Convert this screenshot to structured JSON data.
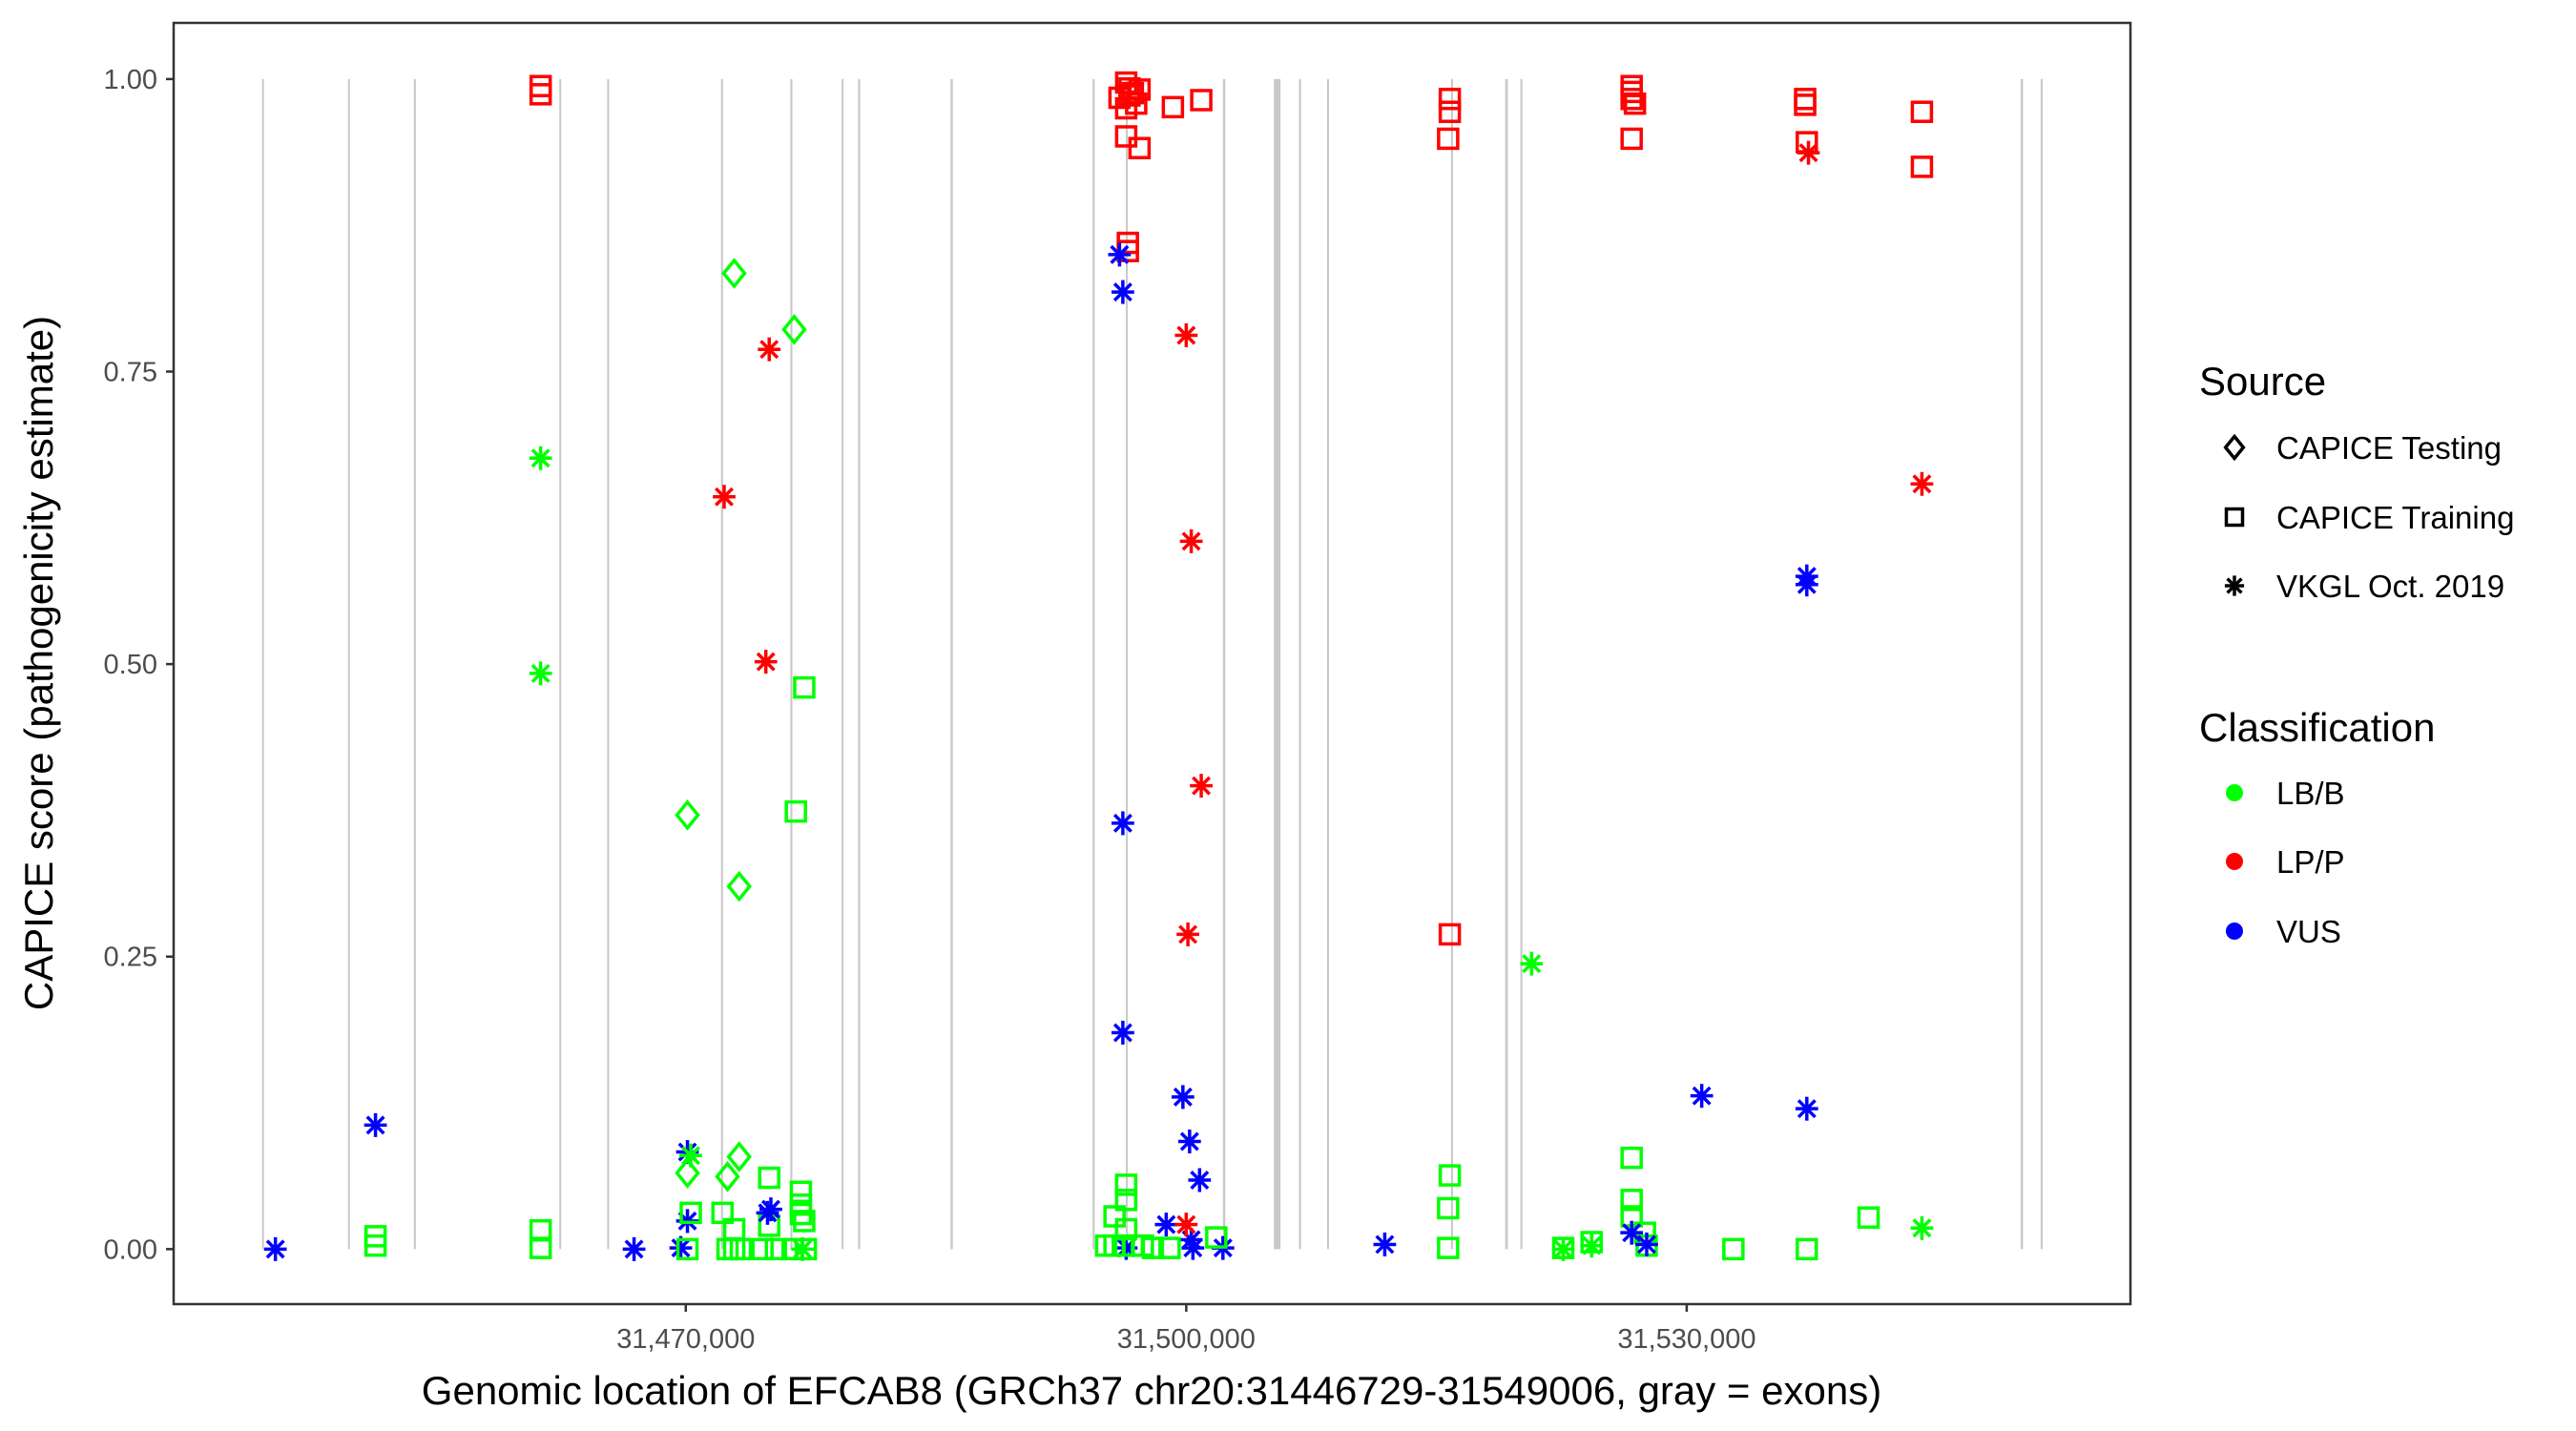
{
  "chart_data": {
    "type": "scatter",
    "xlabel": "Genomic location of EFCAB8 (GRCh37 chr20:31446729-31549006, gray = exons)",
    "ylabel": "CAPICE score (pathogenicity estimate)",
    "xlim": [
      31439300,
      31556600
    ],
    "ylim": [
      -0.047,
      1.048
    ],
    "x_ticks": [
      31470000,
      31500000,
      31530000
    ],
    "x_tick_labels": [
      "31,470,000",
      "31,500,000",
      "31,530,000"
    ],
    "y_ticks": [
      0,
      0.25,
      0.5,
      0.75,
      1.0
    ],
    "y_tick_labels": [
      "0.00",
      "0.25",
      "0.50",
      "0.75",
      "1.00"
    ],
    "grid": false,
    "exons": [
      [
        31444600,
        31444700
      ],
      [
        31449750,
        31449850
      ],
      [
        31453700,
        31453820
      ],
      [
        31462420,
        31462520
      ],
      [
        31465290,
        31465390
      ],
      [
        31472110,
        31472230
      ],
      [
        31476270,
        31476390
      ],
      [
        31479340,
        31479460
      ],
      [
        31480330,
        31480450
      ],
      [
        31485870,
        31486010
      ],
      [
        31494390,
        31494510
      ],
      [
        31496380,
        31496480
      ],
      [
        31502200,
        31502340
      ],
      [
        31505250,
        31505650
      ],
      [
        31506760,
        31506880
      ],
      [
        31508440,
        31508560
      ],
      [
        31515870,
        31515990
      ],
      [
        31519120,
        31519280
      ],
      [
        31520030,
        31520150
      ],
      [
        31550020,
        31550160
      ],
      [
        31551220,
        31551340
      ]
    ],
    "legend": {
      "placement": "right",
      "source_title": "Source",
      "source_entries": [
        {
          "key": "T",
          "label": "CAPICE Testing",
          "shape": "diamond"
        },
        {
          "key": "R",
          "label": "CAPICE Training",
          "shape": "square"
        },
        {
          "key": "V",
          "label": "VKGL Oct. 2019",
          "shape": "asterisk"
        }
      ],
      "class_title": "Classification",
      "class_entries": [
        {
          "key": "B",
          "label": "LB/B",
          "color": "#00ff00"
        },
        {
          "key": "P",
          "label": "LP/P",
          "color": "#ff0000"
        },
        {
          "key": "U",
          "label": "VUS",
          "color": "#0000ff"
        }
      ]
    },
    "point_fields": [
      "position",
      "score",
      "source",
      "classification"
    ],
    "points": [
      [
        31445400,
        0.0,
        "V",
        "U"
      ],
      [
        31451400,
        0.106,
        "V",
        "U"
      ],
      [
        31451400,
        0.011,
        "R",
        "B"
      ],
      [
        31451400,
        0.003,
        "R",
        "B"
      ],
      [
        31461300,
        0.994,
        "R",
        "P"
      ],
      [
        31461300,
        0.987,
        "R",
        "P"
      ],
      [
        31461300,
        0.676,
        "V",
        "B"
      ],
      [
        31461300,
        0.492,
        "V",
        "B"
      ],
      [
        31461300,
        0.016,
        "R",
        "B"
      ],
      [
        31461300,
        0.001,
        "R",
        "B"
      ],
      [
        31466900,
        0.0,
        "V",
        "U"
      ],
      [
        31469700,
        0.001,
        "V",
        "U"
      ],
      [
        31470100,
        0.024,
        "V",
        "U"
      ],
      [
        31470100,
        0.083,
        "V",
        "U"
      ],
      [
        31470300,
        0.08,
        "V",
        "B"
      ],
      [
        31470100,
        0.371,
        "T",
        "B"
      ],
      [
        31470100,
        0.065,
        "T",
        "B"
      ],
      [
        31470300,
        0.031,
        "R",
        "B"
      ],
      [
        31470100,
        0.0,
        "R",
        "B"
      ],
      [
        31472900,
        0.834,
        "T",
        "B"
      ],
      [
        31473200,
        0.31,
        "T",
        "B"
      ],
      [
        31473200,
        0.079,
        "T",
        "B"
      ],
      [
        31472500,
        0.062,
        "T",
        "B"
      ],
      [
        31472200,
        0.031,
        "R",
        "B"
      ],
      [
        31472900,
        0.017,
        "R",
        "B"
      ],
      [
        31472500,
        0.0,
        "R",
        "B"
      ],
      [
        31472900,
        0.0,
        "R",
        "B"
      ],
      [
        31473300,
        0.0,
        "R",
        "B"
      ],
      [
        31472300,
        0.643,
        "V",
        "P"
      ],
      [
        31475000,
        0.769,
        "V",
        "P"
      ],
      [
        31474800,
        0.502,
        "V",
        "P"
      ],
      [
        31476500,
        0.786,
        "T",
        "B"
      ],
      [
        31477100,
        0.48,
        "R",
        "B"
      ],
      [
        31476600,
        0.374,
        "R",
        "B"
      ],
      [
        31475000,
        0.061,
        "R",
        "B"
      ],
      [
        31476900,
        0.049,
        "R",
        "B"
      ],
      [
        31476900,
        0.038,
        "R",
        "B"
      ],
      [
        31476900,
        0.03,
        "R",
        "B"
      ],
      [
        31475000,
        0.02,
        "R",
        "B"
      ],
      [
        31477100,
        0.024,
        "R",
        "B"
      ],
      [
        31474600,
        0.0,
        "R",
        "B"
      ],
      [
        31475400,
        0.0,
        "R",
        "B"
      ],
      [
        31476400,
        0.0,
        "R",
        "B"
      ],
      [
        31477200,
        0.0,
        "R",
        "B"
      ],
      [
        31475100,
        0.034,
        "V",
        "U"
      ],
      [
        31474900,
        0.031,
        "V",
        "U"
      ],
      [
        31477000,
        0.0,
        "V",
        "B"
      ],
      [
        31496400,
        0.997,
        "R",
        "P"
      ],
      [
        31496600,
        0.992,
        "R",
        "P"
      ],
      [
        31496800,
        0.988,
        "R",
        "P"
      ],
      [
        31496000,
        0.984,
        "R",
        "P"
      ],
      [
        31497200,
        0.991,
        "R",
        "P"
      ],
      [
        31496400,
        0.975,
        "R",
        "P"
      ],
      [
        31497000,
        0.979,
        "R",
        "P"
      ],
      [
        31496600,
        0.986,
        "R",
        "P"
      ],
      [
        31499200,
        0.976,
        "R",
        "P"
      ],
      [
        31500900,
        0.982,
        "R",
        "P"
      ],
      [
        31496400,
        0.951,
        "R",
        "P"
      ],
      [
        31497200,
        0.941,
        "R",
        "P"
      ],
      [
        31496500,
        0.86,
        "R",
        "P"
      ],
      [
        31496500,
        0.853,
        "R",
        "P"
      ],
      [
        31496000,
        0.85,
        "V",
        "U"
      ],
      [
        31496200,
        0.818,
        "V",
        "U"
      ],
      [
        31496200,
        0.364,
        "V",
        "U"
      ],
      [
        31496200,
        0.185,
        "V",
        "U"
      ],
      [
        31499800,
        0.13,
        "V",
        "U"
      ],
      [
        31500200,
        0.092,
        "V",
        "U"
      ],
      [
        31500800,
        0.059,
        "V",
        "U"
      ],
      [
        31498800,
        0.021,
        "V",
        "U"
      ],
      [
        31496400,
        0.001,
        "V",
        "U"
      ],
      [
        31500400,
        0.001,
        "V",
        "U"
      ],
      [
        31502200,
        0.001,
        "V",
        "U"
      ],
      [
        31500300,
        0.008,
        "V",
        "U"
      ],
      [
        31500000,
        0.781,
        "V",
        "P"
      ],
      [
        31500300,
        0.605,
        "V",
        "P"
      ],
      [
        31500900,
        0.396,
        "V",
        "P"
      ],
      [
        31500100,
        0.269,
        "V",
        "P"
      ],
      [
        31500000,
        0.021,
        "V",
        "P"
      ],
      [
        31496400,
        0.055,
        "R",
        "B"
      ],
      [
        31496400,
        0.042,
        "R",
        "B"
      ],
      [
        31495700,
        0.028,
        "R",
        "B"
      ],
      [
        31496400,
        0.017,
        "R",
        "B"
      ],
      [
        31495200,
        0.003,
        "R",
        "B"
      ],
      [
        31495700,
        0.003,
        "R",
        "B"
      ],
      [
        31496200,
        0.003,
        "R",
        "B"
      ],
      [
        31496800,
        0.003,
        "R",
        "B"
      ],
      [
        31497400,
        0.003,
        "R",
        "B"
      ],
      [
        31498000,
        0.001,
        "R",
        "B"
      ],
      [
        31499000,
        0.001,
        "R",
        "B"
      ],
      [
        31501800,
        0.01,
        "R",
        "B"
      ],
      [
        31511900,
        0.004,
        "V",
        "U"
      ],
      [
        31515800,
        0.983,
        "R",
        "P"
      ],
      [
        31515800,
        0.972,
        "R",
        "P"
      ],
      [
        31515700,
        0.949,
        "R",
        "P"
      ],
      [
        31515800,
        0.269,
        "R",
        "P"
      ],
      [
        31515800,
        0.063,
        "R",
        "B"
      ],
      [
        31515700,
        0.035,
        "R",
        "B"
      ],
      [
        31515700,
        0.001,
        "R",
        "B"
      ],
      [
        31520700,
        0.244,
        "V",
        "B"
      ],
      [
        31522600,
        0.0,
        "V",
        "B"
      ],
      [
        31524300,
        0.003,
        "V",
        "B"
      ],
      [
        31522600,
        0.001,
        "R",
        "B"
      ],
      [
        31524300,
        0.006,
        "R",
        "B"
      ],
      [
        31526700,
        0.994,
        "R",
        "P"
      ],
      [
        31526700,
        0.989,
        "R",
        "P"
      ],
      [
        31526700,
        0.983,
        "R",
        "P"
      ],
      [
        31526900,
        0.979,
        "R",
        "P"
      ],
      [
        31526700,
        0.949,
        "R",
        "P"
      ],
      [
        31526700,
        0.078,
        "R",
        "B"
      ],
      [
        31526700,
        0.042,
        "R",
        "B"
      ],
      [
        31526700,
        0.028,
        "R",
        "B"
      ],
      [
        31527500,
        0.014,
        "R",
        "B"
      ],
      [
        31527600,
        0.003,
        "R",
        "B"
      ],
      [
        31526700,
        0.014,
        "V",
        "U"
      ],
      [
        31527600,
        0.004,
        "V",
        "U"
      ],
      [
        31530900,
        0.131,
        "V",
        "U"
      ],
      [
        31537200,
        0.575,
        "V",
        "U"
      ],
      [
        31537200,
        0.568,
        "V",
        "U"
      ],
      [
        31537200,
        0.12,
        "V",
        "U"
      ],
      [
        31537100,
        0.983,
        "R",
        "P"
      ],
      [
        31537100,
        0.978,
        "R",
        "P"
      ],
      [
        31537200,
        0.946,
        "R",
        "P"
      ],
      [
        31537300,
        0.937,
        "V",
        "P"
      ],
      [
        31532800,
        0.0,
        "R",
        "B"
      ],
      [
        31537200,
        0.0,
        "R",
        "B"
      ],
      [
        31540900,
        0.027,
        "R",
        "B"
      ],
      [
        31544100,
        0.972,
        "R",
        "P"
      ],
      [
        31544100,
        0.925,
        "R",
        "P"
      ],
      [
        31544100,
        0.654,
        "V",
        "P"
      ],
      [
        31544100,
        0.018,
        "V",
        "B"
      ]
    ]
  }
}
